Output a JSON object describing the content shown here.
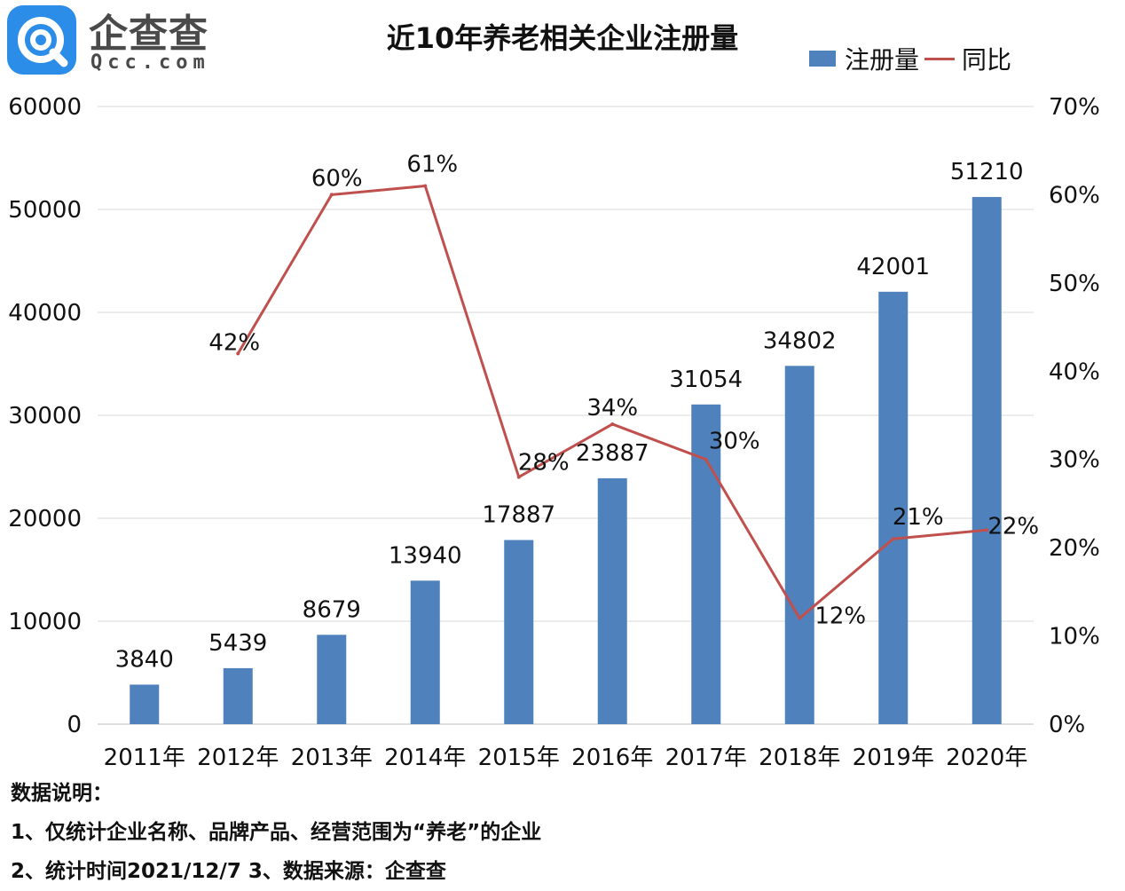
{
  "logo": {
    "cn": "企查查",
    "en": "Qcc.com"
  },
  "chart_data": {
    "type": "bar",
    "title": "近10年养老相关企业注册量",
    "categories": [
      "2011年",
      "2012年",
      "2013年",
      "2014年",
      "2015年",
      "2016年",
      "2017年",
      "2018年",
      "2019年",
      "2020年"
    ],
    "series": [
      {
        "name": "注册量",
        "type": "bar",
        "axis": "left",
        "values": [
          3840,
          5439,
          8679,
          13940,
          17887,
          23887,
          31054,
          34802,
          42001,
          51210
        ],
        "labels": [
          "3840",
          "5439",
          "8679",
          "13940",
          "17887",
          "23887",
          "31054",
          "34802",
          "42001",
          "51210"
        ],
        "color": "#4f81bd"
      },
      {
        "name": "同比",
        "type": "line",
        "axis": "right",
        "values": [
          null,
          42,
          60,
          61,
          28,
          34,
          30,
          12,
          21,
          22
        ],
        "labels": [
          "",
          "42%",
          "60%",
          "61%",
          "28%",
          "34%",
          "30%",
          "12%",
          "21%",
          "22%"
        ],
        "color": "#c0504d"
      }
    ],
    "y_left": {
      "min": 0,
      "max": 60000,
      "ticks": [
        "0",
        "10000",
        "20000",
        "30000",
        "40000",
        "50000",
        "60000"
      ]
    },
    "y_right": {
      "min": 0,
      "max": 70,
      "ticks": [
        "0%",
        "10%",
        "20%",
        "30%",
        "40%",
        "50%",
        "60%",
        "70%"
      ]
    },
    "grid": true,
    "legend_position": "top-right"
  },
  "notes": [
    "数据说明：",
    "1、仅统计企业名称、品牌产品、经营范围为“养老”的企业",
    "2、统计时间2021/12/7   3、数据来源：企查查"
  ]
}
